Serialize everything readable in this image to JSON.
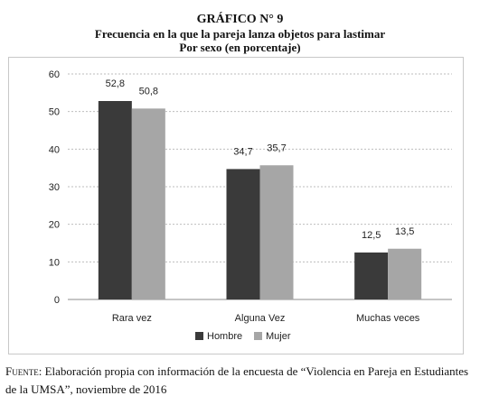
{
  "figure": {
    "title": "GRÁFICO N° 9",
    "subtitle_line1": "Frecuencia en la que la pareja lanza objetos para lastimar",
    "subtitle_line2": "Por sexo (en porcentaje)"
  },
  "source": {
    "label": "Fuente",
    "text": ": Elaboración propia con información de la encuesta de “Violencia en Pareja en Estudiantes de la UMSA”, noviembre de 2016"
  },
  "chart_data": {
    "type": "bar",
    "categories": [
      "Rara vez",
      "Alguna Vez",
      "Muchas veces"
    ],
    "series": [
      {
        "name": "Hombre",
        "values": [
          52.8,
          34.7,
          12.5
        ],
        "labels": [
          "52,8",
          "34,7",
          "12,5"
        ],
        "color": "#3a3a3a"
      },
      {
        "name": "Mujer",
        "values": [
          50.8,
          35.7,
          13.5
        ],
        "labels": [
          "50,8",
          "35,7",
          "13,5"
        ],
        "color": "#a6a6a6"
      }
    ],
    "yticks": [
      "0",
      "10",
      "20",
      "30",
      "40",
      "50",
      "60"
    ],
    "ylim": [
      0,
      60
    ],
    "grid": true,
    "legend_position": "bottom"
  }
}
